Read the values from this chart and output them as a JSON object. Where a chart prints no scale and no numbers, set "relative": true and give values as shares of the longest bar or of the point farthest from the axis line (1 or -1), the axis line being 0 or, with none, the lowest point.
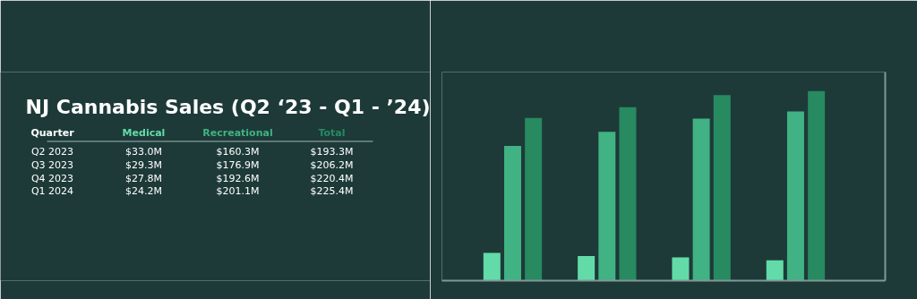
{
  "chart_data": {
    "type": "bar",
    "title": "NJ Cannabis Sales (Q2 ‘23 - Q1 - ’24)",
    "relative": true,
    "categories": [
      null,
      null,
      null,
      null
    ],
    "series": [
      {
        "name": "Medical",
        "color": "#62dba8",
        "values": [
          0.146,
          0.13,
          0.123,
          0.107
        ]
      },
      {
        "name": "Recreational",
        "color": "#40b283",
        "values": [
          0.711,
          0.785,
          0.854,
          0.892
        ]
      },
      {
        "name": "Total",
        "color": "#278a60",
        "values": [
          0.858,
          0.915,
          0.978,
          1
        ]
      }
    ],
    "annotations": [
      "Quarter",
      "Q2 2023",
      "$33.0M",
      "$160.3M",
      "$193.3M",
      "Q3 2023",
      "$29.3M",
      "$176.9M",
      "$206.2M",
      "Q4 2023",
      "$27.8M",
      "$192.6M",
      "$220.4M",
      "Q1 2024",
      "$24.2M",
      "$201.1M",
      "$225.4M"
    ]
  }
}
